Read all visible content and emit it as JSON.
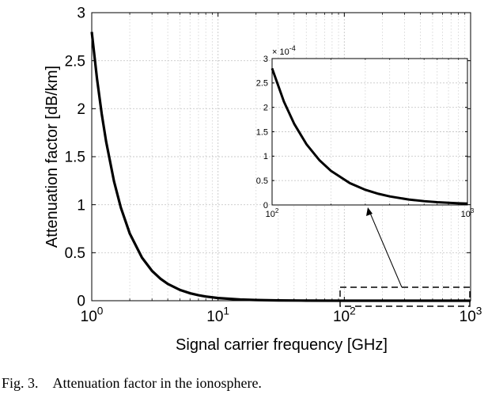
{
  "chart_data": [
    {
      "panel": "main",
      "type": "line",
      "xlabel": "Signal carrier frequency [GHz]",
      "ylabel": "Attenuation factor [dB/km]",
      "xscale": "log",
      "xlim": [
        1,
        1000
      ],
      "ylim": [
        0,
        3
      ],
      "xticks": [
        {
          "base": "10",
          "exp": "0"
        },
        {
          "base": "10",
          "exp": "1"
        },
        {
          "base": "10",
          "exp": "2"
        },
        {
          "base": "10",
          "exp": "3"
        }
      ],
      "yticks": [
        "0",
        "0.5",
        "1",
        "1.5",
        "2",
        "2.5",
        "3"
      ],
      "grid": true,
      "series": [
        {
          "x": [
            1,
            1.1,
            1.2,
            1.3,
            1.5,
            1.7,
            2,
            2.5,
            3,
            3.5,
            4,
            5,
            6,
            7,
            8,
            10,
            15,
            20,
            30,
            50,
            100,
            200,
            500,
            1000
          ],
          "values": [
            2.8,
            2.314,
            1.944,
            1.657,
            1.244,
            0.969,
            0.7,
            0.448,
            0.311,
            0.229,
            0.175,
            0.112,
            0.078,
            0.057,
            0.044,
            0.028,
            0.0124,
            0.007,
            0.0031,
            0.0011,
            0.00028,
            7e-05,
            1.12e-05,
            2.8e-06
          ]
        }
      ]
    },
    {
      "panel": "inset",
      "type": "line",
      "xscale": "log",
      "xlim": [
        100,
        1000
      ],
      "ylim": [
        0,
        0.0003
      ],
      "y_multiplier": {
        "base": "× 10",
        "exp": "-4"
      },
      "xticks": [
        {
          "base": "10",
          "exp": "2"
        },
        {
          "base": "10",
          "exp": "3"
        }
      ],
      "yticks": [
        "0",
        "0.5",
        "1",
        "1.5",
        "2",
        "2.5",
        "3"
      ],
      "grid": true,
      "series": [
        {
          "x": [
            100,
            115,
            130,
            150,
            175,
            200,
            250,
            300,
            350,
            400,
            500,
            600,
            700,
            800,
            900,
            1000
          ],
          "values": [
            0.00028,
            0.0002117,
            0.0001657,
            0.0001244,
            9.14e-05,
            7e-05,
            4.48e-05,
            3.11e-05,
            2.29e-05,
            1.75e-05,
            1.12e-05,
            7.8e-06,
            5.7e-06,
            4.4e-06,
            3.5e-06,
            2.8e-06
          ]
        }
      ]
    }
  ],
  "caption": {
    "number": "Fig. 3.",
    "text": "Attenuation factor in the ionosphere."
  }
}
